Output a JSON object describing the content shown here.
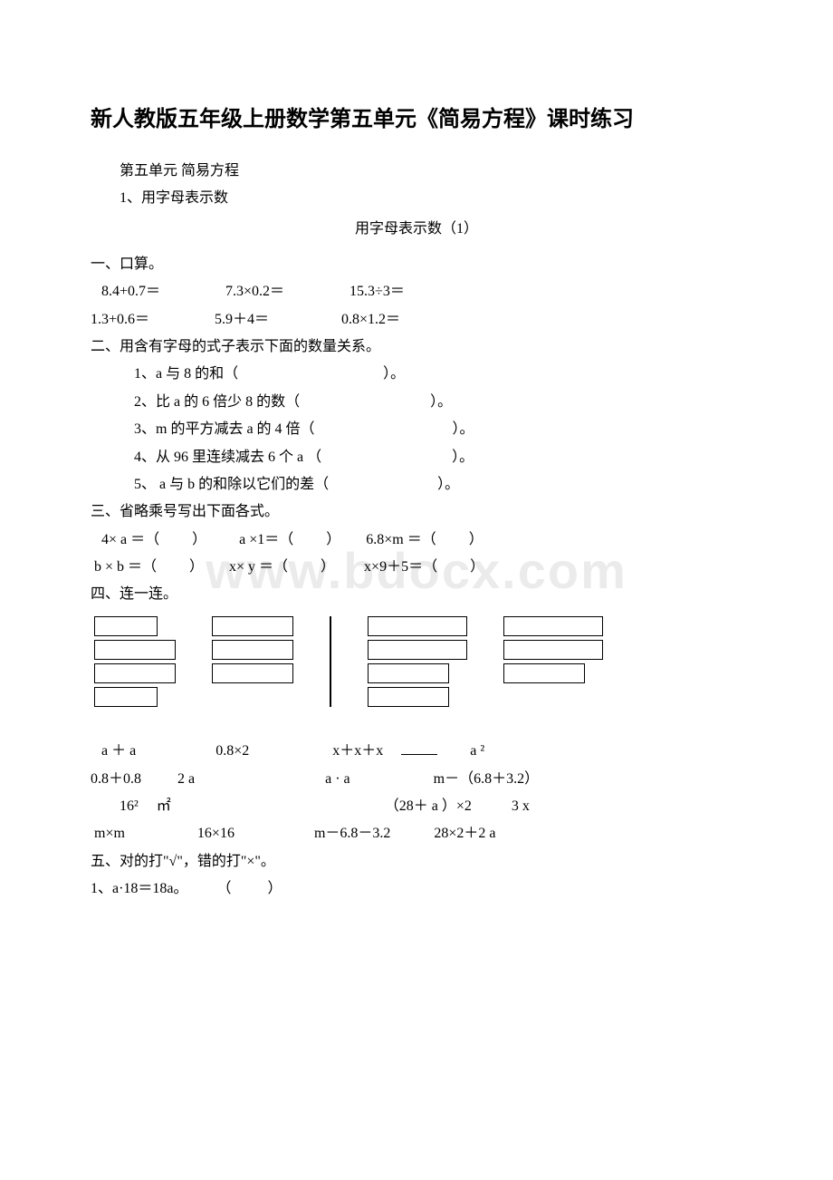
{
  "watermark": "www.bdocx.com",
  "title": "新人教版五年级上册数学第五单元《简易方程》课时练习",
  "header_lines": {
    "unit": "第五单元   简易方程",
    "topic": "1、用字母表示数",
    "subtitle": "用字母表示数（1）"
  },
  "sec1": {
    "heading": "一、口算。",
    "row1": "   8.4+0.7＝                  7.3×0.2＝                  15.3÷3＝",
    "row2": "1.3+0.6＝                  5.9＋4＝                    0.8×1.2＝"
  },
  "sec2": {
    "heading": "二、用含有字母的式子表示下面的数量关系。",
    "q1": "1、a 与 8 的和（                                        ）。",
    "q2": "2、比 a 的 6 倍少 8 的数（                                    ）。",
    "q3": "3、m 的平方减去 a 的 4 倍（                                      ）。",
    "q4": "4、从 96 里连续减去 6 个 a （                                    ）。",
    "q5": "5、 a 与 b 的和除以它们的差（                              ）。"
  },
  "sec3": {
    "heading": "三、省略乘号写出下面各式。",
    "row1": "   4× a ＝（         ）         a ×1＝（         ）       6.8×m ＝（         ）",
    "row2": " b × b ＝（         ）       x× y ＝（         ）        x×9＋5＝（         ）"
  },
  "sec4": {
    "heading": "四、连一连。",
    "line1_left": " a ＋ a                      0.8×2",
    "line1_right": "x＋x＋x",
    "line1_tail": "a ²",
    "line2": "0.8＋0.8          2 a                                    a · a                       m－（6.8＋3.2）",
    "line3": "        16²     ㎡                                                           （28＋ a ）×2           3 x",
    "line4": " m×m                    16×16                      m－6.8－3.2            28×2＋2 a"
  },
  "sec5": {
    "heading": "五、对的打\"√\"，错的打\"×\"。",
    "q1": "1、a·18＝18a。        （          ）"
  }
}
